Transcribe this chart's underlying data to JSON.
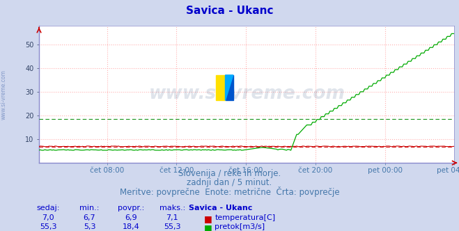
{
  "title": "Savica - Ukanc",
  "title_color": "#0000cc",
  "bg_color": "#d0d8ee",
  "plot_bg_color": "#ffffff",
  "grid_color_h": "#ffb0b0",
  "grid_color_v": "#ffb0b0",
  "ylabel_ticks": [
    10,
    20,
    30,
    40,
    50
  ],
  "ylim": [
    0,
    58
  ],
  "num_points": 288,
  "temp_base": 7.0,
  "temp_min": 6.7,
  "temp_max": 7.1,
  "temp_mean_line": 6.9,
  "flow_min": 5.3,
  "flow_max": 55.3,
  "flow_mean_line": 18.4,
  "temp_color": "#cc0000",
  "flow_color": "#00aa00",
  "temp_dash_color": "#cc0000",
  "flow_dash_color": "#008800",
  "watermark_text": "www.si-vreme.com",
  "watermark_color": "#2a4a7a",
  "watermark_alpha": 0.15,
  "left_label": "www.si-vreme.com",
  "left_label_color": "#4466aa",
  "x_tick_labels": [
    "čet 08:00",
    "čet 12:00",
    "čet 16:00",
    "čet 20:00",
    "pet 00:00",
    "pet 04:00"
  ],
  "x_tick_positions": [
    48,
    96,
    144,
    192,
    240,
    288
  ],
  "subtitle_lines": [
    "Slovenija / reke in morje.",
    "zadnji dan / 5 minut.",
    "Meritve: povprečne  Enote: metrične  Črta: povprečje"
  ],
  "subtitle_color": "#4477aa",
  "subtitle_fontsize": 8.5,
  "table_header": [
    "sedaj:",
    "min.:",
    "povpr.:",
    "maks.:",
    "Savica - Ukanc"
  ],
  "table_row1": [
    "7,0",
    "6,7",
    "6,9",
    "7,1",
    "temperatura[C]"
  ],
  "table_row2": [
    "55,3",
    "5,3",
    "18,4",
    "55,3",
    "pretok[m3/s]"
  ],
  "table_color": "#0000cc",
  "table_header_color": "#0000cc",
  "temp_legend_color": "#cc0000",
  "flow_legend_color": "#00aa00",
  "spine_color": "#8888cc",
  "tick_color": "#334466"
}
